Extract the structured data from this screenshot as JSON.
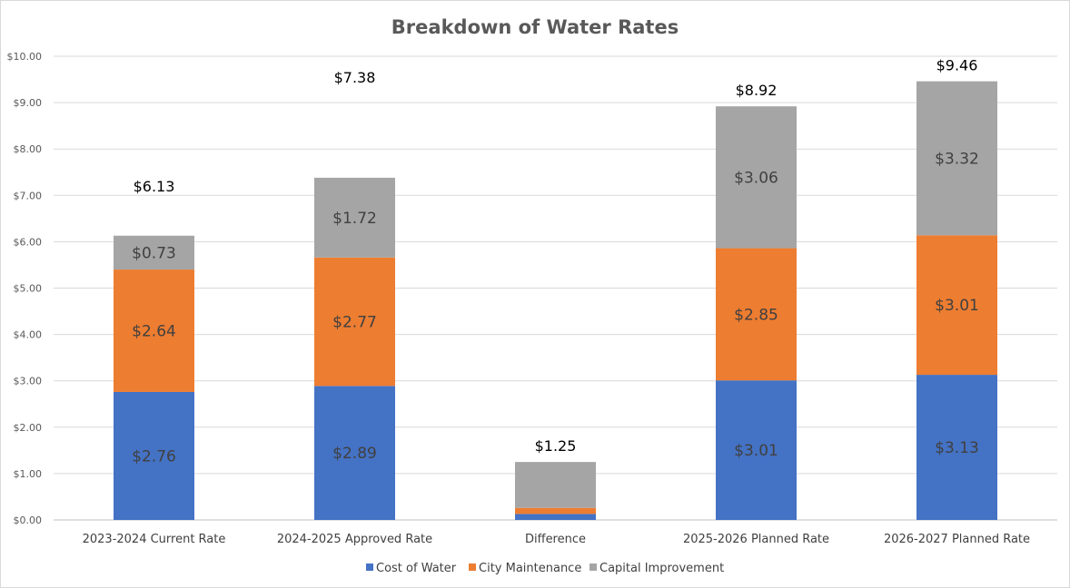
{
  "chart_data": {
    "type": "bar",
    "stacked": true,
    "title": "Breakdown of Water Rates",
    "xlabel": "",
    "ylabel": "",
    "ylim": [
      0,
      10
    ],
    "y_ticks": [
      "$0.00",
      "$1.00",
      "$2.00",
      "$3.00",
      "$4.00",
      "$5.00",
      "$6.00",
      "$7.00",
      "$8.00",
      "$9.00",
      "$10.00"
    ],
    "grid": true,
    "legend_position": "bottom",
    "categories": [
      "2023-2024 Current Rate",
      "2024-2025 Approved Rate",
      "Difference",
      "2025-2026 Planned Rate",
      "2026-2027 Planned Rate"
    ],
    "series": [
      {
        "name": "Cost of Water",
        "color": "#4472C4",
        "values": [
          2.76,
          2.89,
          0.13,
          3.01,
          3.13
        ],
        "labels": [
          "$2.76",
          "$2.89",
          "",
          "$3.01",
          "$3.13"
        ]
      },
      {
        "name": "City Maintenance",
        "color": "#ED7D31",
        "values": [
          2.64,
          2.77,
          0.13,
          2.85,
          3.01
        ],
        "labels": [
          "$2.64",
          "$2.77",
          "",
          "$2.85",
          "$3.01"
        ]
      },
      {
        "name": "Capital Improvement",
        "color": "#A5A5A5",
        "values": [
          0.73,
          1.72,
          0.99,
          3.06,
          3.32
        ],
        "labels": [
          "$0.73",
          "$1.72",
          "",
          "$3.06",
          "$3.32"
        ]
      }
    ],
    "totals": [
      "$6.13",
      "$7.38",
      "$1.25",
      "$8.92",
      "$9.46"
    ],
    "total_values": [
      6.13,
      7.38,
      1.25,
      8.92,
      9.46
    ]
  }
}
